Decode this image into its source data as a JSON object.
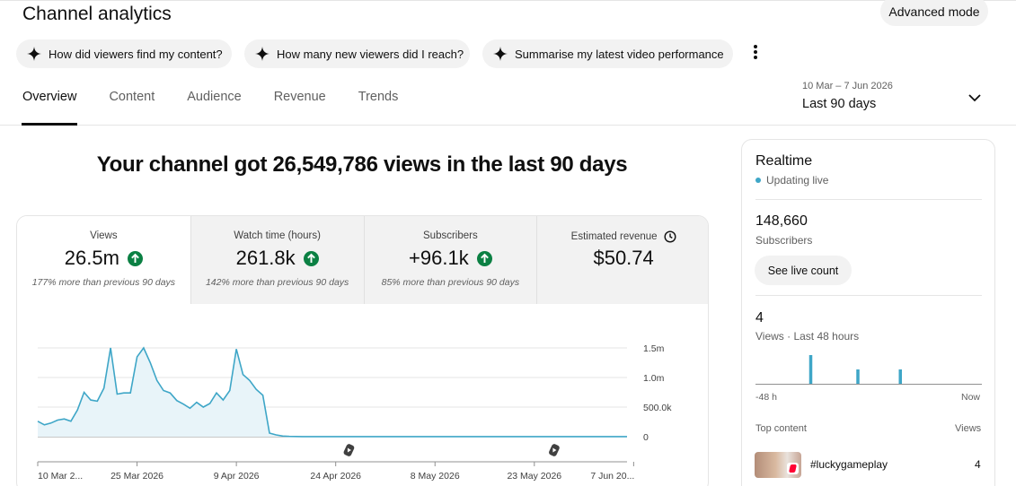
{
  "page": {
    "title": "Channel analytics"
  },
  "header": {
    "advanced_mode_label": "Advanced mode",
    "suggestion_chips": [
      "How did viewers find my content?",
      "How many new viewers did I reach?",
      "Summarise my latest video performance"
    ]
  },
  "tabs": [
    {
      "label": "Overview",
      "active": true
    },
    {
      "label": "Content",
      "active": false
    },
    {
      "label": "Audience",
      "active": false
    },
    {
      "label": "Revenue",
      "active": false
    },
    {
      "label": "Trends",
      "active": false
    }
  ],
  "date_range": {
    "range": "10 Mar – 7 Jun 2026",
    "label": "Last 90 days"
  },
  "headline": "Your channel got 26,549,786 views in the last 90 days",
  "metrics": [
    {
      "label": "Views",
      "value": "26.5m",
      "comparison": "177% more than previous 90 days",
      "trend": "up"
    },
    {
      "label": "Watch time (hours)",
      "value": "261.8k",
      "comparison": "142% more than previous 90 days",
      "trend": "up"
    },
    {
      "label": "Subscribers",
      "value": "+96.1k",
      "comparison": "85% more than previous 90 days",
      "trend": "up"
    },
    {
      "label": "Estimated revenue",
      "value": "$50.74",
      "comparison": "",
      "trend": "none"
    }
  ],
  "colors": {
    "accent": "#3ea6c7",
    "up_green": "#0b8043",
    "chip_bg": "#f2f2f2"
  },
  "chart_data": {
    "type": "area",
    "series": [
      {
        "name": "Views",
        "start_date": "2026-03-10",
        "values": [
          260000,
          200000,
          230000,
          280000,
          300000,
          260000,
          450000,
          750000,
          620000,
          600000,
          820000,
          1500000,
          720000,
          740000,
          740000,
          1350000,
          1500000,
          1250000,
          950000,
          780000,
          740000,
          610000,
          550000,
          480000,
          580000,
          500000,
          560000,
          740000,
          620000,
          780000,
          1480000,
          1050000,
          950000,
          800000,
          700000,
          60000,
          30000,
          10000,
          5000,
          3000,
          2000,
          2000,
          2000,
          2000,
          2000,
          2000,
          2000,
          2000,
          2000,
          2000,
          2000,
          2000,
          2000,
          2000,
          2000,
          2000,
          2000,
          2000,
          2000,
          2000,
          2000,
          2000,
          2000,
          2000,
          2000,
          2000,
          2000,
          2000,
          2000,
          2000,
          2000,
          2000,
          2000,
          2000,
          2000,
          2000,
          2000,
          2000,
          2000,
          2000,
          2000,
          2000,
          2000,
          2000,
          2000,
          2000,
          2000,
          2000,
          2000,
          2000
        ]
      }
    ],
    "x_tick_labels": [
      "10 Mar 2...",
      "25 Mar 2026",
      "9 Apr 2026",
      "24 Apr 2026",
      "8 May 2026",
      "23 May 2026",
      "7 Jun 20..."
    ],
    "y_ticks": [
      {
        "value": 0,
        "label": "0"
      },
      {
        "value": 500000,
        "label": "500.0k"
      },
      {
        "value": 1000000,
        "label": "1.0m"
      },
      {
        "value": 1500000,
        "label": "1.5m"
      }
    ],
    "ylim": [
      0,
      1500000
    ],
    "grid": true,
    "line_color": "#3ea6c7",
    "fill_color": "#e8f4f9",
    "published_markers": [
      "2026-04-26",
      "2026-05-27"
    ]
  },
  "realtime": {
    "title": "Realtime",
    "status": "Updating live",
    "subscribers_value": "148,660",
    "subscribers_label": "Subscribers",
    "live_count_button": "See live count",
    "views_value": "4",
    "views_label": "Views · Last 48 hours",
    "axis_left": "-48 h",
    "axis_right": "Now",
    "hourly_bar_values": [
      0,
      0,
      0,
      0,
      0,
      0,
      0,
      0,
      0,
      0,
      0,
      2,
      0,
      0,
      0,
      0,
      0,
      0,
      0,
      0,
      0,
      1,
      0,
      0,
      0,
      0,
      0,
      0,
      0,
      0,
      1,
      0,
      0,
      0,
      0,
      0,
      0,
      0,
      0,
      0,
      0,
      0,
      0,
      0,
      0,
      0,
      0,
      0
    ],
    "top_content_label": "Top content",
    "views_column_label": "Views",
    "top_items": [
      {
        "title": "#luckygameplay",
        "views": "4"
      }
    ]
  }
}
